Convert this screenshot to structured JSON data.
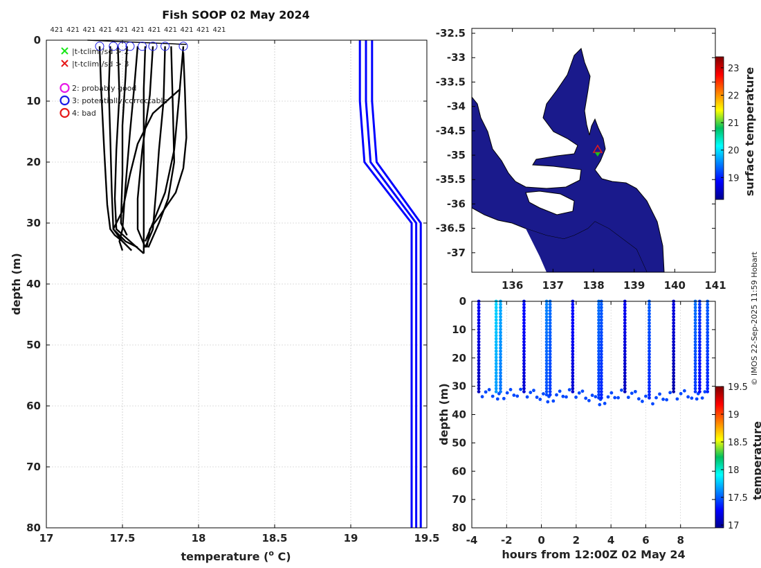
{
  "chart_data": [
    {
      "type": "line",
      "panel": "profiles",
      "title": "Fish SOOP 02 May 2024",
      "xlabel": "temperature (",
      "xlabel_sup": "o",
      "xlabel_tail": " C)",
      "ylabel": "depth (m)",
      "xlim": [
        17,
        19.5
      ],
      "ylim": [
        0,
        80
      ],
      "y_reversed": true,
      "xticks": [
        "17",
        "17.5",
        "18",
        "18.5",
        "19",
        "19.5"
      ],
      "yticks": [
        "0",
        "10",
        "20",
        "30",
        "40",
        "50",
        "60",
        "70",
        "80"
      ],
      "grid": true,
      "top_labels": [
        "421",
        "421",
        "421",
        "421",
        "421",
        "421",
        "421",
        "421",
        "421",
        "421",
        "421"
      ],
      "legend": [
        {
          "marker": "x",
          "color": "#19e619",
          "label": "|t-tclim|/sd > 2"
        },
        {
          "marker": "x",
          "color": "#e61919",
          "label": "|t-tclim|/sd > 3"
        },
        {
          "marker": "o",
          "color": "#e619e6",
          "label": "2: probably good"
        },
        {
          "marker": "o",
          "color": "#1919e6",
          "label": "3: potentially correctable"
        },
        {
          "marker": "o",
          "color": "#e61919",
          "label": "4: bad"
        }
      ],
      "flag_circles": [
        17.35,
        17.44,
        17.5,
        17.55,
        17.63,
        17.7,
        17.78,
        17.9
      ],
      "series": [
        {
          "color": "#000000",
          "points": [
            [
              17.35,
              1
            ],
            [
              17.36,
              8
            ],
            [
              17.38,
              18
            ],
            [
              17.4,
              27
            ],
            [
              17.42,
              31
            ],
            [
              17.45,
              32
            ],
            [
              17.5,
              33
            ]
          ]
        },
        {
          "color": "#000000",
          "points": [
            [
              17.42,
              1
            ],
            [
              17.41,
              8
            ],
            [
              17.42,
              16
            ],
            [
              17.43,
              25
            ],
            [
              17.44,
              31
            ],
            [
              17.5,
              33
            ],
            [
              17.56,
              34.5
            ]
          ]
        },
        {
          "color": "#000000",
          "points": [
            [
              17.47,
              1
            ],
            [
              17.48,
              9
            ],
            [
              17.46,
              18
            ],
            [
              17.45,
              26
            ],
            [
              17.46,
              31
            ],
            [
              17.55,
              33
            ],
            [
              17.64,
              35
            ]
          ]
        },
        {
          "color": "#000000",
          "points": [
            [
              17.53,
              1
            ],
            [
              17.52,
              6
            ],
            [
              17.5,
              14
            ],
            [
              17.5,
              22
            ],
            [
              17.49,
              30
            ],
            [
              17.53,
              32
            ]
          ]
        },
        {
          "color": "#000000",
          "points": [
            [
              17.6,
              1
            ],
            [
              17.58,
              7
            ],
            [
              17.55,
              15
            ],
            [
              17.52,
              24
            ],
            [
              17.5,
              31
            ],
            [
              17.48,
              33
            ],
            [
              17.5,
              34.5
            ]
          ]
        },
        {
          "color": "#000000",
          "points": [
            [
              17.65,
              1
            ],
            [
              17.64,
              8
            ],
            [
              17.64,
              16
            ],
            [
              17.64,
              24
            ],
            [
              17.64,
              31
            ],
            [
              17.64,
              35
            ]
          ]
        },
        {
          "color": "#000000",
          "points": [
            [
              17.7,
              1
            ],
            [
              17.68,
              9
            ],
            [
              17.63,
              18
            ],
            [
              17.6,
              26
            ],
            [
              17.6,
              31
            ],
            [
              17.65,
              34
            ]
          ]
        },
        {
          "color": "#000000",
          "points": [
            [
              17.78,
              1
            ],
            [
              17.77,
              10
            ],
            [
              17.74,
              18
            ],
            [
              17.72,
              25
            ],
            [
              17.7,
              31
            ],
            [
              17.65,
              34
            ]
          ]
        },
        {
          "color": "#000000",
          "points": [
            [
              17.82,
              1
            ],
            [
              17.83,
              10
            ],
            [
              17.84,
              20
            ],
            [
              17.8,
              26
            ],
            [
              17.74,
              30
            ],
            [
              17.67,
              34
            ]
          ]
        },
        {
          "color": "#000000",
          "points": [
            [
              17.9,
              1
            ],
            [
              17.89,
              4
            ],
            [
              17.87,
              10
            ],
            [
              17.84,
              18
            ],
            [
              17.78,
              25
            ],
            [
              17.7,
              30
            ],
            [
              17.65,
              33
            ]
          ]
        },
        {
          "color": "#000000",
          "points": [
            [
              17.9,
              2
            ],
            [
              17.91,
              8
            ],
            [
              17.92,
              16
            ],
            [
              17.9,
              21
            ],
            [
              17.85,
              25
            ],
            [
              17.74,
              29
            ],
            [
              17.68,
              31
            ],
            [
              17.66,
              34
            ]
          ]
        },
        {
          "color": "#000000",
          "points": [
            [
              17.88,
              8
            ],
            [
              17.7,
              12
            ],
            [
              17.6,
              17
            ],
            [
              17.55,
              22
            ],
            [
              17.5,
              28
            ],
            [
              17.44,
              31
            ],
            [
              17.52,
              33
            ],
            [
              17.6,
              34
            ]
          ]
        },
        {
          "color": "#0000ff",
          "points": [
            [
              19.06,
              0
            ],
            [
              19.06,
              10
            ],
            [
              19.09,
              20
            ],
            [
              19.4,
              30
            ],
            [
              19.4,
              80
            ]
          ]
        },
        {
          "color": "#0000ff",
          "points": [
            [
              19.1,
              0
            ],
            [
              19.1,
              10
            ],
            [
              19.13,
              20
            ],
            [
              19.43,
              30
            ],
            [
              19.43,
              80
            ]
          ]
        },
        {
          "color": "#0000ff",
          "points": [
            [
              19.14,
              0
            ],
            [
              19.14,
              10
            ],
            [
              19.17,
              20
            ],
            [
              19.46,
              30
            ],
            [
              19.46,
              80
            ]
          ]
        }
      ]
    },
    {
      "type": "heatmap",
      "panel": "map",
      "colorbar_label": "surface temperature",
      "xlim": [
        135,
        141
      ],
      "ylim": [
        -37.4,
        -32.4
      ],
      "xticks": [
        "136",
        "137",
        "138",
        "139",
        "140",
        "141"
      ],
      "yticks": [
        "-32.5",
        "-33",
        "-33.5",
        "-34",
        "-34.5",
        "-35",
        "-35.5",
        "-36",
        "-36.5",
        "-37"
      ],
      "colorbar_range": [
        18.2,
        23.4
      ],
      "colorbar_ticks": [
        "19",
        "20",
        "21",
        "22",
        "23"
      ],
      "ocean_color": "#1a1a8c",
      "land_color": "#ffffff",
      "marker": {
        "lon": 138.1,
        "lat": -34.9
      }
    },
    {
      "type": "scatter",
      "panel": "time_depth",
      "xlabel": "hours from 12:00Z 02 May 24",
      "ylabel": "depth (m)",
      "colorbar_label": "temperature",
      "xlim": [
        -4,
        10
      ],
      "ylim": [
        0,
        80
      ],
      "y_reversed": true,
      "xticks": [
        "-4",
        "-2",
        "0",
        "2",
        "4",
        "6",
        "8"
      ],
      "yticks": [
        "0",
        "10",
        "20",
        "30",
        "40",
        "50",
        "60",
        "70",
        "80"
      ],
      "colorbar_range": [
        16.95,
        19.5
      ],
      "colorbar_ticks": [
        "17",
        "17.5",
        "18",
        "18.5",
        "19",
        "19.5"
      ],
      "casts": [
        {
          "t": -3.6,
          "bottom": 32,
          "temp": 17.25
        },
        {
          "t": -2.6,
          "bottom": 33,
          "temp": 17.8
        },
        {
          "t": -2.35,
          "bottom": 33,
          "temp": 17.7
        },
        {
          "t": -1.0,
          "bottom": 32,
          "temp": 17.3
        },
        {
          "t": 0.3,
          "bottom": 34,
          "temp": 17.6
        },
        {
          "t": 0.5,
          "bottom": 34,
          "temp": 17.55
        },
        {
          "t": 1.8,
          "bottom": 32,
          "temp": 17.3
        },
        {
          "t": 3.3,
          "bottom": 35,
          "temp": 17.55
        },
        {
          "t": 3.45,
          "bottom": 35,
          "temp": 17.5
        },
        {
          "t": 4.8,
          "bottom": 32,
          "temp": 17.25
        },
        {
          "t": 6.2,
          "bottom": 35,
          "temp": 17.5
        },
        {
          "t": 7.6,
          "bottom": 33,
          "temp": 17.2
        },
        {
          "t": 8.85,
          "bottom": 33,
          "temp": 17.55
        },
        {
          "t": 9.1,
          "bottom": 33,
          "temp": 17.4
        },
        {
          "t": 9.55,
          "bottom": 32,
          "temp": 17.5
        }
      ]
    }
  ],
  "credit": "© IMOS 22-Sep-2025 11:59 Hobart"
}
